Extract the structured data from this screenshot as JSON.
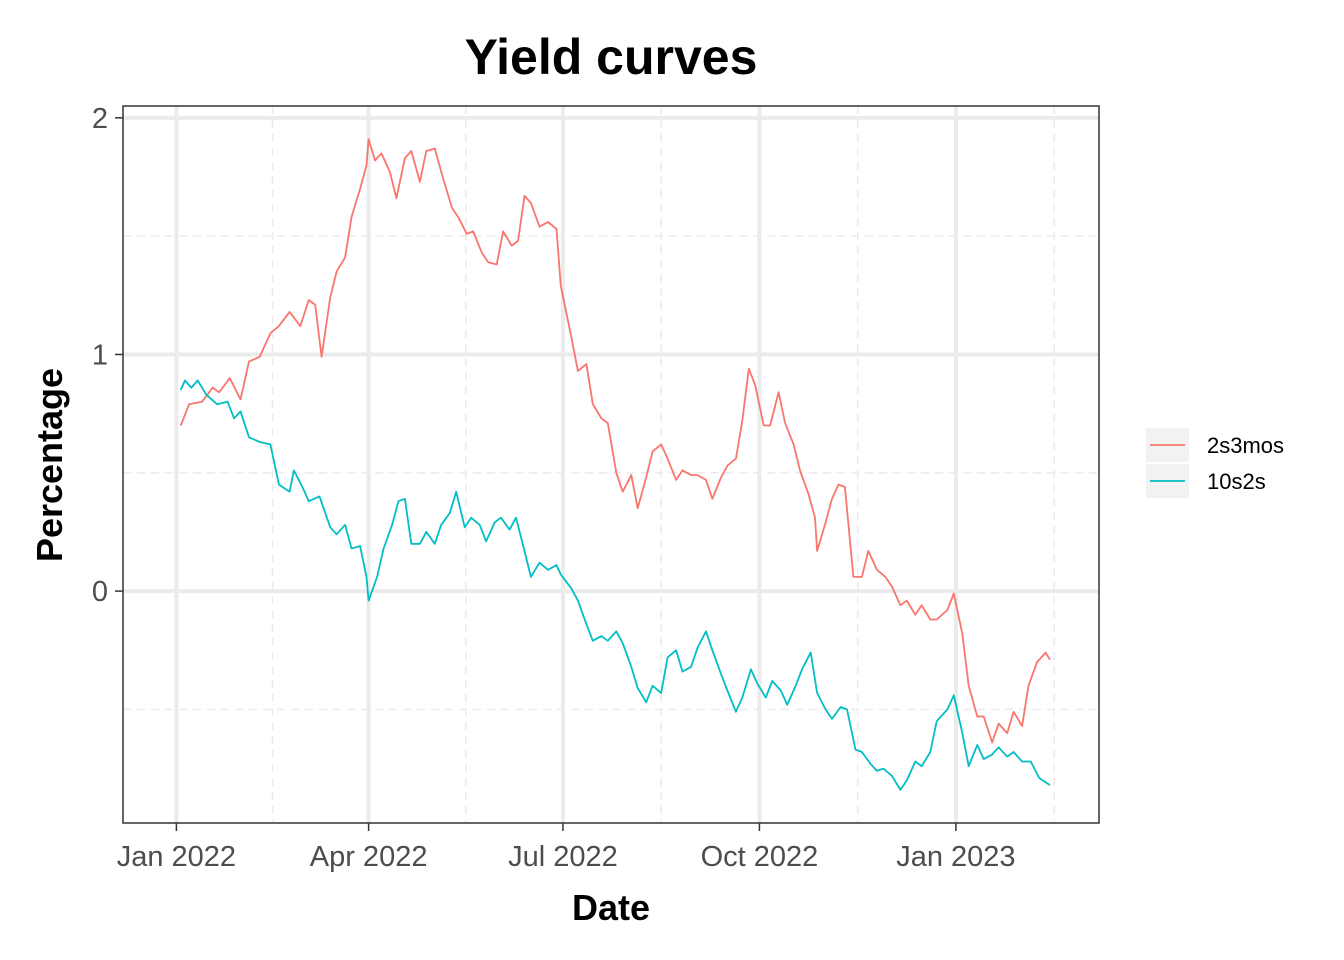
{
  "chart_data": {
    "type": "line",
    "title": "Yield curves",
    "xlabel": "Date",
    "ylabel": "Percentage",
    "x_ticks": [
      "2022-01-01",
      "2022-04-01",
      "2022-07-01",
      "2022-10-01",
      "2023-01-01"
    ],
    "x_tick_labels": [
      "Jan 2022",
      "Apr 2022",
      "Jul 2022",
      "Oct 2022",
      "Jan 2023"
    ],
    "y_ticks": [
      0,
      1,
      2
    ],
    "y_tick_labels": [
      "0",
      "1",
      "2"
    ],
    "xlim": [
      "2021-12-07",
      "2023-03-09"
    ],
    "ylim": [
      -0.98,
      2.05
    ],
    "grid": true,
    "legend_position": "right",
    "series": [
      {
        "name": "2s3mos",
        "color": "#F8766D",
        "points": [
          [
            "2022-01-03",
            0.7
          ],
          [
            "2022-01-07",
            0.79
          ],
          [
            "2022-01-13",
            0.8
          ],
          [
            "2022-01-18",
            0.86
          ],
          [
            "2022-01-21",
            0.84
          ],
          [
            "2022-01-26",
            0.9
          ],
          [
            "2022-01-31",
            0.81
          ],
          [
            "2022-02-04",
            0.97
          ],
          [
            "2022-02-09",
            0.99
          ],
          [
            "2022-02-14",
            1.09
          ],
          [
            "2022-02-18",
            1.12
          ],
          [
            "2022-02-23",
            1.18
          ],
          [
            "2022-02-28",
            1.12
          ],
          [
            "2022-03-04",
            1.23
          ],
          [
            "2022-03-07",
            1.21
          ],
          [
            "2022-03-10",
            0.99
          ],
          [
            "2022-03-14",
            1.24
          ],
          [
            "2022-03-17",
            1.35
          ],
          [
            "2022-03-21",
            1.41
          ],
          [
            "2022-03-24",
            1.58
          ],
          [
            "2022-03-28",
            1.7
          ],
          [
            "2022-03-31",
            1.8
          ],
          [
            "2022-04-01",
            1.91
          ],
          [
            "2022-04-04",
            1.82
          ],
          [
            "2022-04-07",
            1.85
          ],
          [
            "2022-04-11",
            1.77
          ],
          [
            "2022-04-14",
            1.66
          ],
          [
            "2022-04-18",
            1.83
          ],
          [
            "2022-04-21",
            1.86
          ],
          [
            "2022-04-25",
            1.73
          ],
          [
            "2022-04-28",
            1.86
          ],
          [
            "2022-05-02",
            1.87
          ],
          [
            "2022-05-06",
            1.74
          ],
          [
            "2022-05-10",
            1.62
          ],
          [
            "2022-05-13",
            1.58
          ],
          [
            "2022-05-17",
            1.51
          ],
          [
            "2022-05-20",
            1.52
          ],
          [
            "2022-05-24",
            1.43
          ],
          [
            "2022-05-27",
            1.39
          ],
          [
            "2022-05-31",
            1.38
          ],
          [
            "2022-06-03",
            1.52
          ],
          [
            "2022-06-07",
            1.46
          ],
          [
            "2022-06-10",
            1.48
          ],
          [
            "2022-06-13",
            1.67
          ],
          [
            "2022-06-16",
            1.64
          ],
          [
            "2022-06-20",
            1.54
          ],
          [
            "2022-06-24",
            1.56
          ],
          [
            "2022-06-28",
            1.53
          ],
          [
            "2022-06-30",
            1.29
          ],
          [
            "2022-07-05",
            1.07
          ],
          [
            "2022-07-08",
            0.93
          ],
          [
            "2022-07-12",
            0.96
          ],
          [
            "2022-07-15",
            0.79
          ],
          [
            "2022-07-19",
            0.73
          ],
          [
            "2022-07-22",
            0.71
          ],
          [
            "2022-07-26",
            0.5
          ],
          [
            "2022-07-29",
            0.42
          ],
          [
            "2022-08-02",
            0.49
          ],
          [
            "2022-08-05",
            0.35
          ],
          [
            "2022-08-09",
            0.48
          ],
          [
            "2022-08-12",
            0.59
          ],
          [
            "2022-08-16",
            0.62
          ],
          [
            "2022-08-19",
            0.56
          ],
          [
            "2022-08-23",
            0.47
          ],
          [
            "2022-08-26",
            0.51
          ],
          [
            "2022-08-30",
            0.49
          ],
          [
            "2022-09-02",
            0.49
          ],
          [
            "2022-09-06",
            0.47
          ],
          [
            "2022-09-09",
            0.39
          ],
          [
            "2022-09-13",
            0.48
          ],
          [
            "2022-09-16",
            0.53
          ],
          [
            "2022-09-20",
            0.56
          ],
          [
            "2022-09-23",
            0.72
          ],
          [
            "2022-09-26",
            0.94
          ],
          [
            "2022-09-29",
            0.87
          ],
          [
            "2022-10-03",
            0.7
          ],
          [
            "2022-10-06",
            0.7
          ],
          [
            "2022-10-10",
            0.84
          ],
          [
            "2022-10-13",
            0.71
          ],
          [
            "2022-10-17",
            0.62
          ],
          [
            "2022-10-20",
            0.51
          ],
          [
            "2022-10-24",
            0.41
          ],
          [
            "2022-10-27",
            0.31
          ],
          [
            "2022-10-28",
            0.17
          ],
          [
            "2022-11-01",
            0.29
          ],
          [
            "2022-11-04",
            0.39
          ],
          [
            "2022-11-07",
            0.45
          ],
          [
            "2022-11-10",
            0.44
          ],
          [
            "2022-11-14",
            0.06
          ],
          [
            "2022-11-18",
            0.06
          ],
          [
            "2022-11-21",
            0.17
          ],
          [
            "2022-11-25",
            0.09
          ],
          [
            "2022-11-29",
            0.06
          ],
          [
            "2022-12-02",
            0.02
          ],
          [
            "2022-12-06",
            -0.06
          ],
          [
            "2022-12-09",
            -0.04
          ],
          [
            "2022-12-13",
            -0.1
          ],
          [
            "2022-12-16",
            -0.06
          ],
          [
            "2022-12-20",
            -0.12
          ],
          [
            "2022-12-23",
            -0.12
          ],
          [
            "2022-12-28",
            -0.08
          ],
          [
            "2022-12-31",
            -0.01
          ],
          [
            "2023-01-04",
            -0.18
          ],
          [
            "2023-01-07",
            -0.4
          ],
          [
            "2023-01-11",
            -0.53
          ],
          [
            "2023-01-14",
            -0.53
          ],
          [
            "2023-01-18",
            -0.64
          ],
          [
            "2023-01-21",
            -0.56
          ],
          [
            "2023-01-25",
            -0.6
          ],
          [
            "2023-01-28",
            -0.51
          ],
          [
            "2023-02-01",
            -0.57
          ],
          [
            "2023-02-04",
            -0.4
          ],
          [
            "2023-02-08",
            -0.3
          ],
          [
            "2023-02-12",
            -0.26
          ],
          [
            "2023-02-14",
            -0.29
          ]
        ]
      },
      {
        "name": "10s2s",
        "color": "#00BFC4",
        "points": [
          [
            "2022-01-03",
            0.85
          ],
          [
            "2022-01-05",
            0.89
          ],
          [
            "2022-01-08",
            0.86
          ],
          [
            "2022-01-11",
            0.89
          ],
          [
            "2022-01-15",
            0.83
          ],
          [
            "2022-01-20",
            0.79
          ],
          [
            "2022-01-25",
            0.8
          ],
          [
            "2022-01-28",
            0.73
          ],
          [
            "2022-01-31",
            0.76
          ],
          [
            "2022-02-04",
            0.65
          ],
          [
            "2022-02-09",
            0.63
          ],
          [
            "2022-02-14",
            0.62
          ],
          [
            "2022-02-18",
            0.45
          ],
          [
            "2022-02-23",
            0.42
          ],
          [
            "2022-02-25",
            0.51
          ],
          [
            "2022-03-01",
            0.44
          ],
          [
            "2022-03-04",
            0.38
          ],
          [
            "2022-03-09",
            0.4
          ],
          [
            "2022-03-14",
            0.27
          ],
          [
            "2022-03-17",
            0.24
          ],
          [
            "2022-03-21",
            0.28
          ],
          [
            "2022-03-24",
            0.18
          ],
          [
            "2022-03-28",
            0.19
          ],
          [
            "2022-03-31",
            0.06
          ],
          [
            "2022-04-01",
            -0.04
          ],
          [
            "2022-04-05",
            0.06
          ],
          [
            "2022-04-08",
            0.18
          ],
          [
            "2022-04-12",
            0.28
          ],
          [
            "2022-04-15",
            0.38
          ],
          [
            "2022-04-18",
            0.39
          ],
          [
            "2022-04-21",
            0.2
          ],
          [
            "2022-04-25",
            0.2
          ],
          [
            "2022-04-28",
            0.25
          ],
          [
            "2022-05-02",
            0.2
          ],
          [
            "2022-05-05",
            0.28
          ],
          [
            "2022-05-09",
            0.33
          ],
          [
            "2022-05-12",
            0.42
          ],
          [
            "2022-05-16",
            0.27
          ],
          [
            "2022-05-19",
            0.31
          ],
          [
            "2022-05-23",
            0.28
          ],
          [
            "2022-05-26",
            0.21
          ],
          [
            "2022-05-30",
            0.29
          ],
          [
            "2022-06-02",
            0.31
          ],
          [
            "2022-06-06",
            0.26
          ],
          [
            "2022-06-09",
            0.31
          ],
          [
            "2022-06-13",
            0.17
          ],
          [
            "2022-06-16",
            0.06
          ],
          [
            "2022-06-20",
            0.12
          ],
          [
            "2022-06-24",
            0.09
          ],
          [
            "2022-06-28",
            0.11
          ],
          [
            "2022-06-30",
            0.07
          ],
          [
            "2022-07-05",
            0.01
          ],
          [
            "2022-07-08",
            -0.04
          ],
          [
            "2022-07-12",
            -0.14
          ],
          [
            "2022-07-15",
            -0.21
          ],
          [
            "2022-07-19",
            -0.19
          ],
          [
            "2022-07-22",
            -0.21
          ],
          [
            "2022-07-26",
            -0.17
          ],
          [
            "2022-07-29",
            -0.22
          ],
          [
            "2022-08-02",
            -0.32
          ],
          [
            "2022-08-05",
            -0.41
          ],
          [
            "2022-08-09",
            -0.47
          ],
          [
            "2022-08-12",
            -0.4
          ],
          [
            "2022-08-16",
            -0.43
          ],
          [
            "2022-08-19",
            -0.28
          ],
          [
            "2022-08-23",
            -0.25
          ],
          [
            "2022-08-26",
            -0.34
          ],
          [
            "2022-08-30",
            -0.32
          ],
          [
            "2022-09-02",
            -0.24
          ],
          [
            "2022-09-06",
            -0.17
          ],
          [
            "2022-09-09",
            -0.25
          ],
          [
            "2022-09-13",
            -0.35
          ],
          [
            "2022-09-16",
            -0.42
          ],
          [
            "2022-09-20",
            -0.51
          ],
          [
            "2022-09-23",
            -0.45
          ],
          [
            "2022-09-27",
            -0.33
          ],
          [
            "2022-09-30",
            -0.39
          ],
          [
            "2022-10-04",
            -0.45
          ],
          [
            "2022-10-07",
            -0.38
          ],
          [
            "2022-10-11",
            -0.42
          ],
          [
            "2022-10-14",
            -0.48
          ],
          [
            "2022-10-18",
            -0.4
          ],
          [
            "2022-10-21",
            -0.33
          ],
          [
            "2022-10-25",
            -0.26
          ],
          [
            "2022-10-28",
            -0.43
          ],
          [
            "2022-11-01",
            -0.5
          ],
          [
            "2022-11-04",
            -0.54
          ],
          [
            "2022-11-08",
            -0.49
          ],
          [
            "2022-11-11",
            -0.5
          ],
          [
            "2022-11-15",
            -0.67
          ],
          [
            "2022-11-18",
            -0.68
          ],
          [
            "2022-11-22",
            -0.73
          ],
          [
            "2022-11-25",
            -0.76
          ],
          [
            "2022-11-28",
            -0.75
          ],
          [
            "2022-12-02",
            -0.78
          ],
          [
            "2022-12-06",
            -0.84
          ],
          [
            "2022-12-09",
            -0.8
          ],
          [
            "2022-12-13",
            -0.72
          ],
          [
            "2022-12-16",
            -0.74
          ],
          [
            "2022-12-20",
            -0.68
          ],
          [
            "2022-12-23",
            -0.55
          ],
          [
            "2022-12-28",
            -0.5
          ],
          [
            "2022-12-31",
            -0.44
          ],
          [
            "2023-01-04",
            -0.6
          ],
          [
            "2023-01-07",
            -0.74
          ],
          [
            "2023-01-11",
            -0.65
          ],
          [
            "2023-01-14",
            -0.71
          ],
          [
            "2023-01-18",
            -0.69
          ],
          [
            "2023-01-21",
            -0.66
          ],
          [
            "2023-01-25",
            -0.7
          ],
          [
            "2023-01-28",
            -0.68
          ],
          [
            "2023-02-01",
            -0.72
          ],
          [
            "2023-02-05",
            -0.72
          ],
          [
            "2023-02-09",
            -0.79
          ],
          [
            "2023-02-14",
            -0.82
          ]
        ]
      }
    ]
  }
}
